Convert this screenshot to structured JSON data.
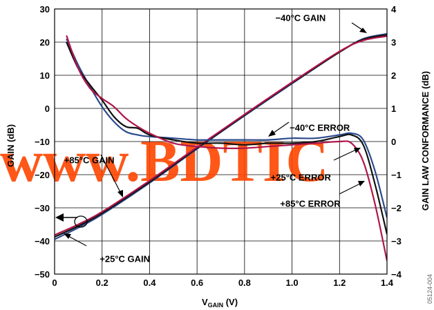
{
  "chart_data": {
    "type": "line",
    "xlabel": "V",
    "xlabel_sub": "GAIN",
    "xlabel_unit": " (V)",
    "ylabel_left": "GAIN (dB)",
    "ylabel_right": "GAIN LAW CONFORMANCE (dB)",
    "xlim": [
      0,
      1.4
    ],
    "ylim_left": [
      -50,
      30
    ],
    "ylim_right": [
      -4,
      4
    ],
    "x_ticks": [
      "0",
      "0.2",
      "0.4",
      "0.6",
      "0.8",
      "1.0",
      "1.2",
      "1.4"
    ],
    "y_ticks_left": [
      "30",
      "20",
      "10",
      "0",
      "−10",
      "−20",
      "−30",
      "−40",
      "−50"
    ],
    "y_ticks_right": [
      "4",
      "3",
      "2",
      "1",
      "0",
      "−1",
      "−2",
      "−3",
      "−4"
    ],
    "grid": true,
    "colors": {
      "m40": "#2b4a8c",
      "p25": "#111111",
      "p85": "#b0154a"
    },
    "series": [
      {
        "name": "−40°C GAIN",
        "axis": "left",
        "color": "#2b4a8c",
        "x": [
          0,
          0.1,
          0.2,
          0.4,
          0.6,
          0.8,
          1.0,
          1.2,
          1.3,
          1.4
        ],
        "y": [
          -39.5,
          -36,
          -32,
          -22.5,
          -12.2,
          -2.2,
          7.5,
          17,
          21,
          22.5
        ]
      },
      {
        "name": "+25°C GAIN",
        "axis": "left",
        "color": "#111111",
        "x": [
          0,
          0.1,
          0.2,
          0.4,
          0.6,
          0.8,
          1.0,
          1.2,
          1.3,
          1.4
        ],
        "y": [
          -38.8,
          -35.5,
          -31.6,
          -22.2,
          -12.0,
          -2.0,
          7.7,
          17.0,
          20.8,
          22.2
        ]
      },
      {
        "name": "+85°C GAIN",
        "axis": "left",
        "color": "#b0154a",
        "x": [
          0,
          0.1,
          0.2,
          0.4,
          0.6,
          0.8,
          1.0,
          1.2,
          1.3,
          1.4
        ],
        "y": [
          -38.2,
          -35.0,
          -31.2,
          -21.8,
          -11.7,
          -1.8,
          7.9,
          17.2,
          20.5,
          21.8
        ]
      },
      {
        "name": "−40°C ERROR",
        "axis": "right",
        "color": "#2b4a8c",
        "x": [
          0.05,
          0.1,
          0.15,
          0.2,
          0.25,
          0.3,
          0.35,
          0.4,
          0.5,
          0.6,
          0.7,
          0.8,
          0.9,
          1.0,
          1.1,
          1.2,
          1.25,
          1.3,
          1.35,
          1.4
        ],
        "y": [
          3.1,
          2.3,
          1.65,
          1.05,
          0.6,
          0.3,
          0.2,
          0.15,
          0.1,
          0.05,
          0.05,
          0.05,
          0.05,
          0.1,
          0.1,
          0.2,
          0.25,
          0.05,
          -0.9,
          -2.3
        ]
      },
      {
        "name": "+25°C ERROR",
        "axis": "right",
        "color": "#111111",
        "x": [
          0.05,
          0.1,
          0.15,
          0.2,
          0.25,
          0.3,
          0.35,
          0.4,
          0.5,
          0.6,
          0.7,
          0.8,
          0.9,
          1.0,
          1.1,
          1.2,
          1.25,
          1.3,
          1.35,
          1.4
        ],
        "y": [
          3.0,
          2.2,
          1.7,
          1.25,
          0.75,
          0.45,
          0.4,
          0.2,
          0.05,
          -0.05,
          -0.05,
          -0.1,
          -0.05,
          -0.05,
          0.0,
          0.15,
          0.2,
          -0.1,
          -1.3,
          -2.8
        ]
      },
      {
        "name": "+85°C ERROR",
        "axis": "right",
        "color": "#b0154a",
        "x": [
          0.05,
          0.1,
          0.15,
          0.2,
          0.25,
          0.3,
          0.35,
          0.4,
          0.5,
          0.6,
          0.7,
          0.8,
          0.9,
          1.0,
          1.1,
          1.2,
          1.25,
          1.3,
          1.35,
          1.4
        ],
        "y": [
          3.2,
          2.2,
          1.6,
          1.3,
          1.05,
          0.7,
          0.45,
          0.25,
          -0.05,
          -0.15,
          -0.2,
          -0.2,
          -0.15,
          -0.1,
          -0.05,
          0.0,
          -0.05,
          -0.6,
          -1.9,
          -3.6
        ]
      }
    ],
    "annotations": [
      {
        "text": "−40°C GAIN",
        "at": [
          0.93,
          26.4
        ]
      },
      {
        "text": "−40°C ERROR",
        "at": [
          0.99,
          -6.8
        ]
      },
      {
        "text": "+85°C GAIN",
        "at": [
          0.04,
          -16.6
        ]
      },
      {
        "text": "+25°C ERROR",
        "at": [
          0.91,
          -21.8
        ]
      },
      {
        "text": "+85°C ERROR",
        "at": [
          0.95,
          -29.7
        ]
      },
      {
        "text": "+25°C GAIN",
        "at": [
          0.19,
          -46.4
        ]
      }
    ]
  },
  "watermark": "www.BDTIC",
  "figure_id": "05124-004"
}
